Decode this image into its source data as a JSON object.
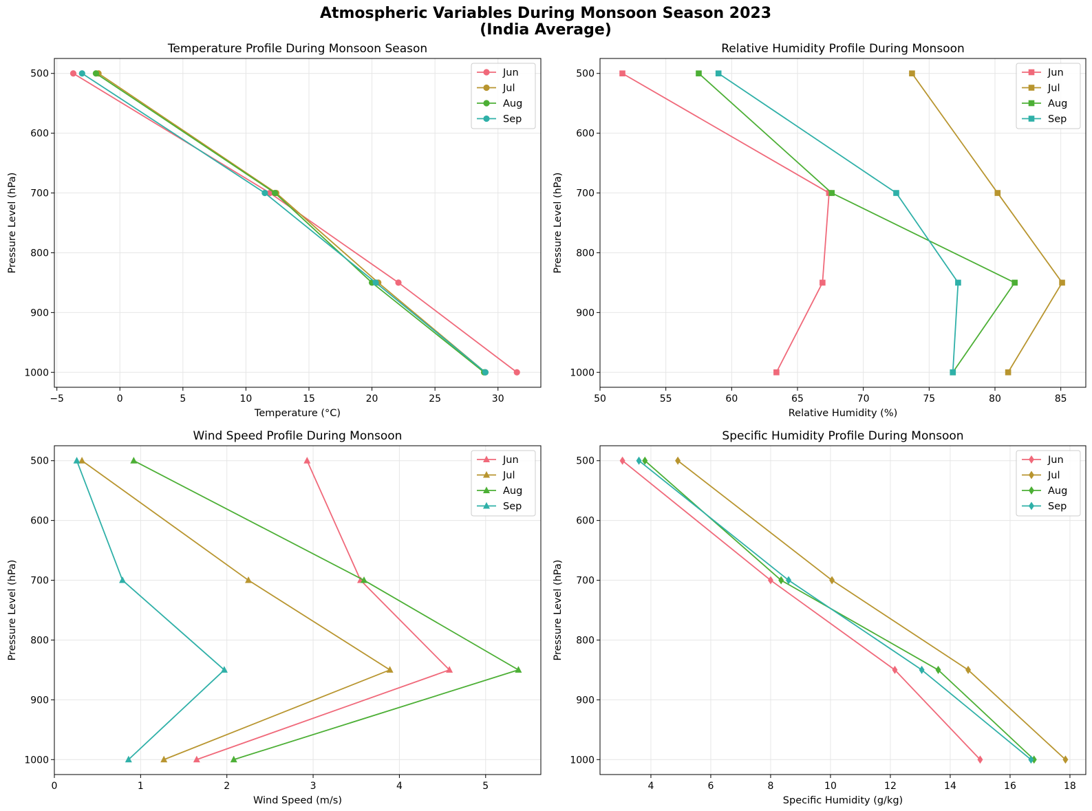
{
  "figure": {
    "title_line1": "Atmospheric Variables During Monsoon Season 2023",
    "title_line2": "(India Average)"
  },
  "colors": {
    "Jun": "#f0697a",
    "Jul": "#b8952f",
    "Aug": "#4caf35",
    "Sep": "#2fb0a8"
  },
  "chart_data": [
    {
      "type": "line",
      "title": "Temperature Profile During Monsoon Season",
      "xlabel": "Temperature (°C)",
      "ylabel": "Pressure Level (hPa)",
      "marker": "circle",
      "xlim": [
        -5.2,
        33.4
      ],
      "xticks": [
        -5,
        0,
        5,
        10,
        15,
        20,
        25,
        30
      ],
      "ylim": [
        1025,
        475
      ],
      "yticks": [
        500,
        600,
        700,
        800,
        900,
        1000
      ],
      "pressure_levels": [
        1000,
        850,
        700,
        500
      ],
      "series": [
        {
          "name": "Jun",
          "values": [
            31.5,
            22.1,
            11.9,
            -3.7
          ]
        },
        {
          "name": "Jul",
          "values": [
            29.0,
            20.5,
            12.4,
            -1.7
          ]
        },
        {
          "name": "Aug",
          "values": [
            28.9,
            20.0,
            12.3,
            -1.9
          ]
        },
        {
          "name": "Sep",
          "values": [
            29.0,
            20.3,
            11.5,
            -3.0
          ]
        }
      ]
    },
    {
      "type": "line",
      "title": "Relative Humidity Profile During Monsoon",
      "xlabel": "Relative Humidity (%)",
      "ylabel": "Pressure Level (hPa)",
      "marker": "square",
      "xlim": [
        50,
        86.9
      ],
      "xticks": [
        50,
        55,
        60,
        65,
        70,
        75,
        80,
        85
      ],
      "ylim": [
        1025,
        475
      ],
      "yticks": [
        500,
        600,
        700,
        800,
        900,
        1000
      ],
      "pressure_levels": [
        1000,
        850,
        700,
        500
      ],
      "series": [
        {
          "name": "Jun",
          "values": [
            63.4,
            66.9,
            67.4,
            51.7
          ]
        },
        {
          "name": "Jul",
          "values": [
            81.0,
            85.1,
            80.2,
            73.7
          ]
        },
        {
          "name": "Aug",
          "values": [
            76.8,
            81.5,
            67.6,
            57.5
          ]
        },
        {
          "name": "Sep",
          "values": [
            76.8,
            77.2,
            72.5,
            59.0
          ]
        }
      ]
    },
    {
      "type": "line",
      "title": "Wind Speed Profile During Monsoon",
      "xlabel": "Wind Speed (m/s)",
      "ylabel": "Pressure Level (hPa)",
      "marker": "triangle",
      "xlim": [
        0,
        5.64
      ],
      "xticks": [
        0,
        1,
        2,
        3,
        4,
        5
      ],
      "ylim": [
        1025,
        475
      ],
      "yticks": [
        500,
        600,
        700,
        800,
        900,
        1000
      ],
      "pressure_levels": [
        1000,
        850,
        700,
        500
      ],
      "series": [
        {
          "name": "Jun",
          "values": [
            1.65,
            4.58,
            3.55,
            2.93
          ]
        },
        {
          "name": "Jul",
          "values": [
            1.27,
            3.89,
            2.25,
            0.32
          ]
        },
        {
          "name": "Aug",
          "values": [
            2.08,
            5.38,
            3.59,
            0.92
          ]
        },
        {
          "name": "Sep",
          "values": [
            0.86,
            1.97,
            0.79,
            0.26
          ]
        }
      ]
    },
    {
      "type": "line",
      "title": "Specific Humidity Profile During Monsoon",
      "xlabel": "Specific Humidity (g/kg)",
      "ylabel": "Pressure Level (hPa)",
      "marker": "diamond",
      "xlim": [
        2.3,
        18.53
      ],
      "xticks": [
        4,
        6,
        8,
        10,
        12,
        14,
        16,
        18
      ],
      "ylim": [
        1025,
        475
      ],
      "yticks": [
        500,
        600,
        700,
        800,
        900,
        1000
      ],
      "pressure_levels": [
        1000,
        850,
        700,
        500
      ],
      "series": [
        {
          "name": "Jun",
          "values": [
            15.0,
            12.15,
            8.0,
            3.05
          ]
        },
        {
          "name": "Jul",
          "values": [
            17.85,
            14.6,
            10.05,
            4.9
          ]
        },
        {
          "name": "Aug",
          "values": [
            16.8,
            13.6,
            8.35,
            3.8
          ]
        },
        {
          "name": "Sep",
          "values": [
            16.7,
            13.05,
            8.6,
            3.6
          ]
        }
      ]
    }
  ]
}
